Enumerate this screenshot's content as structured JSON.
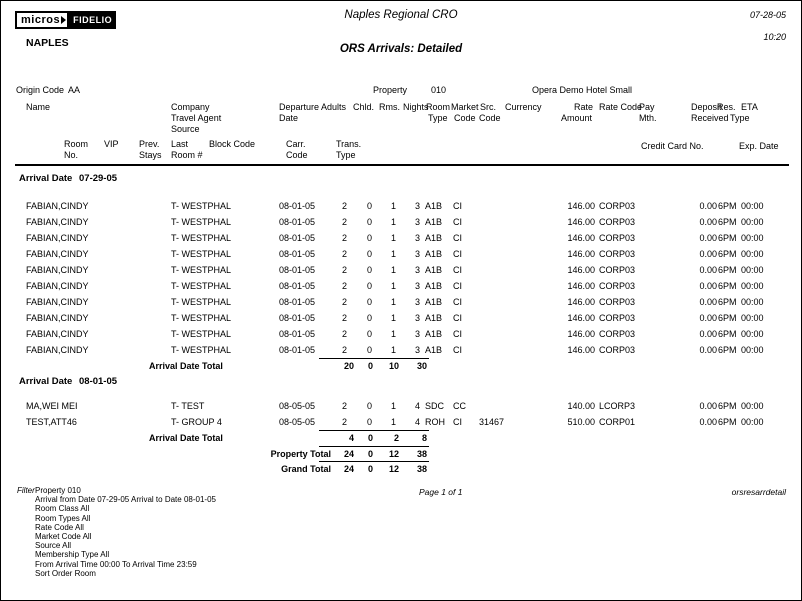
{
  "header": {
    "logo": {
      "micros": "micros",
      "fidelio": "FIDELIO"
    },
    "property_code_name": "NAPLES",
    "cro_title": "Naples Regional CRO",
    "report_title": "ORS Arrivals: Detailed",
    "print_date": "07-28-05",
    "print_time": "10:20"
  },
  "info": {
    "origin_label": "Origin Code",
    "origin_value": "AA",
    "property_label": "Property",
    "property_value": "010",
    "hotel_name": "Opera Demo Hotel Small"
  },
  "columns": {
    "name": "Name",
    "company": "Company",
    "travel_agent": "Travel Agent",
    "source": "Source",
    "departure": "Departure",
    "departure2": "Date",
    "adults": "Adults",
    "chld": "Chld.",
    "rms": "Rms.",
    "nights": "Nights",
    "room": "Room",
    "room2": "Type",
    "market": "Market",
    "market2": "Code",
    "src": "Src.",
    "src2": "Code",
    "currency": "Currency",
    "rate": "Rate",
    "rate2": "Amount",
    "rate_code": "Rate Code",
    "pay": "Pay",
    "pay2": "Mth.",
    "deposit": "Deposit",
    "deposit2": "Received",
    "res": "Res.",
    "res2": "Type",
    "eta": "ETA",
    "room_no": "Room",
    "room_no2": "No.",
    "vip": "VIP",
    "prev": "Prev.",
    "prev2": "Stays",
    "last": "Last",
    "last2": "Room #",
    "block_code": "Block Code",
    "carr": "Carr.",
    "carr2": "Code",
    "trans": "Trans.",
    "trans2": "Type",
    "credit_card": "Credit Card No.",
    "exp_date": "Exp. Date"
  },
  "sections": [
    {
      "label": "Arrival Date",
      "date": "07-29-05",
      "rows": [
        {
          "name": "FABIAN,CINDY",
          "company": "T- WESTPHAL",
          "departure": "08-01-05",
          "adults": "2",
          "chld": "0",
          "rms": "1",
          "nights": "3",
          "room_type": "A1B",
          "market": "CI",
          "src": "",
          "rate_amount": "146.00",
          "rate_code": "CORP03",
          "deposit": "0.00",
          "res_type": "6PM",
          "eta": "00:00"
        },
        {
          "name": "FABIAN,CINDY",
          "company": "T- WESTPHAL",
          "departure": "08-01-05",
          "adults": "2",
          "chld": "0",
          "rms": "1",
          "nights": "3",
          "room_type": "A1B",
          "market": "CI",
          "src": "",
          "rate_amount": "146.00",
          "rate_code": "CORP03",
          "deposit": "0.00",
          "res_type": "6PM",
          "eta": "00:00"
        },
        {
          "name": "FABIAN,CINDY",
          "company": "T- WESTPHAL",
          "departure": "08-01-05",
          "adults": "2",
          "chld": "0",
          "rms": "1",
          "nights": "3",
          "room_type": "A1B",
          "market": "CI",
          "src": "",
          "rate_amount": "146.00",
          "rate_code": "CORP03",
          "deposit": "0.00",
          "res_type": "6PM",
          "eta": "00:00"
        },
        {
          "name": "FABIAN,CINDY",
          "company": "T- WESTPHAL",
          "departure": "08-01-05",
          "adults": "2",
          "chld": "0",
          "rms": "1",
          "nights": "3",
          "room_type": "A1B",
          "market": "CI",
          "src": "",
          "rate_amount": "146.00",
          "rate_code": "CORP03",
          "deposit": "0.00",
          "res_type": "6PM",
          "eta": "00:00"
        },
        {
          "name": "FABIAN,CINDY",
          "company": "T- WESTPHAL",
          "departure": "08-01-05",
          "adults": "2",
          "chld": "0",
          "rms": "1",
          "nights": "3",
          "room_type": "A1B",
          "market": "CI",
          "src": "",
          "rate_amount": "146.00",
          "rate_code": "CORP03",
          "deposit": "0.00",
          "res_type": "6PM",
          "eta": "00:00"
        },
        {
          "name": "FABIAN,CINDY",
          "company": "T- WESTPHAL",
          "departure": "08-01-05",
          "adults": "2",
          "chld": "0",
          "rms": "1",
          "nights": "3",
          "room_type": "A1B",
          "market": "CI",
          "src": "",
          "rate_amount": "146.00",
          "rate_code": "CORP03",
          "deposit": "0.00",
          "res_type": "6PM",
          "eta": "00:00"
        },
        {
          "name": "FABIAN,CINDY",
          "company": "T- WESTPHAL",
          "departure": "08-01-05",
          "adults": "2",
          "chld": "0",
          "rms": "1",
          "nights": "3",
          "room_type": "A1B",
          "market": "CI",
          "src": "",
          "rate_amount": "146.00",
          "rate_code": "CORP03",
          "deposit": "0.00",
          "res_type": "6PM",
          "eta": "00:00"
        },
        {
          "name": "FABIAN,CINDY",
          "company": "T- WESTPHAL",
          "departure": "08-01-05",
          "adults": "2",
          "chld": "0",
          "rms": "1",
          "nights": "3",
          "room_type": "A1B",
          "market": "CI",
          "src": "",
          "rate_amount": "146.00",
          "rate_code": "CORP03",
          "deposit": "0.00",
          "res_type": "6PM",
          "eta": "00:00"
        },
        {
          "name": "FABIAN,CINDY",
          "company": "T- WESTPHAL",
          "departure": "08-01-05",
          "adults": "2",
          "chld": "0",
          "rms": "1",
          "nights": "3",
          "room_type": "A1B",
          "market": "CI",
          "src": "",
          "rate_amount": "146.00",
          "rate_code": "CORP03",
          "deposit": "0.00",
          "res_type": "6PM",
          "eta": "00:00"
        },
        {
          "name": "FABIAN,CINDY",
          "company": "T- WESTPHAL",
          "departure": "08-01-05",
          "adults": "2",
          "chld": "0",
          "rms": "1",
          "nights": "3",
          "room_type": "A1B",
          "market": "CI",
          "src": "",
          "rate_amount": "146.00",
          "rate_code": "CORP03",
          "deposit": "0.00",
          "res_type": "6PM",
          "eta": "00:00"
        }
      ],
      "total": {
        "label": "Arrival Date Total",
        "values": [
          "20",
          "0",
          "10",
          "30"
        ]
      }
    },
    {
      "label": "Arrival Date",
      "date": "08-01-05",
      "rows": [
        {
          "name": "MA,WEI MEI",
          "company": "T- TEST",
          "departure": "08-05-05",
          "adults": "2",
          "chld": "0",
          "rms": "1",
          "nights": "4",
          "room_type": "SDC",
          "market": "CC",
          "src": "",
          "rate_amount": "140.00",
          "rate_code": "LCORP3",
          "deposit": "0.00",
          "res_type": "6PM",
          "eta": "00:00"
        },
        {
          "name": "TEST,ATT46",
          "company": "T- GROUP 4",
          "departure": "08-05-05",
          "adults": "2",
          "chld": "0",
          "rms": "1",
          "nights": "4",
          "room_type": "ROH",
          "market": "CI",
          "src": "31467",
          "rate_amount": "510.00",
          "rate_code": "CORP01",
          "deposit": "0.00",
          "res_type": "6PM",
          "eta": "00:00"
        }
      ],
      "total": {
        "label": "Arrival Date Total",
        "values": [
          "4",
          "0",
          "2",
          "8"
        ]
      }
    }
  ],
  "property_total": {
    "label": "Property Total",
    "values": [
      "24",
      "0",
      "12",
      "38"
    ]
  },
  "grand_total": {
    "label": "Grand Total",
    "values": [
      "24",
      "0",
      "12",
      "38"
    ]
  },
  "footer": {
    "filter_label": "Filter",
    "filter_lines": [
      "Property 010",
      "Arrival from Date 07-29-05  Arrival to Date 08-01-05",
      "Room Class All",
      "Room Types All",
      "Rate Code All",
      "Market Code All",
      "Source All",
      "Membership Type All",
      "From Arrival Time 00:00 To Arrival Time 23:59",
      "Sort Order Room"
    ],
    "page_info": "Page 1 of 1",
    "report_id": "orsresarrdetail"
  }
}
